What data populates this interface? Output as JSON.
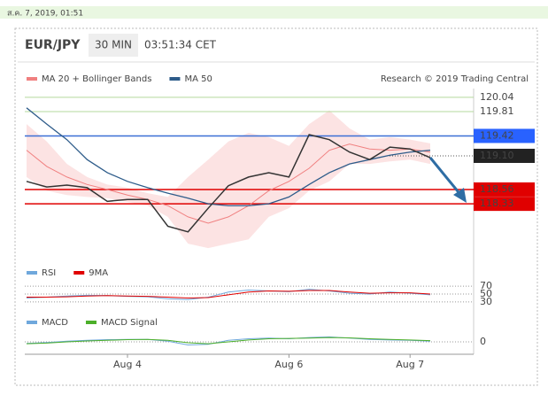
{
  "header": {
    "date": "ส.ค. 7, 2019, 01:51",
    "symbol": "EUR/JPY",
    "interval": "30 MIN",
    "time": "03:51:34 CET",
    "credit": "Research © 2019 Trading Central"
  },
  "chart_data": [
    {
      "type": "line",
      "categories": [
        null,
        null,
        null,
        null,
        null,
        "Aug 4",
        null,
        null,
        null,
        null,
        null,
        null,
        null,
        "Aug 6",
        null,
        null,
        null,
        null,
        null,
        "Aug 7",
        null
      ],
      "values": [
        118.69,
        118.6,
        118.63,
        118.59,
        118.37,
        118.4,
        118.4,
        117.97,
        117.88,
        118.26,
        118.62,
        118.76,
        118.83,
        118.76,
        119.44,
        119.36,
        119.16,
        119.04,
        119.24,
        119.21,
        119.07
      ],
      "color": "#333333",
      "series": [
        {
          "name": "MA 20 + Bollinger Bands",
          "color": "#f08080",
          "values": [
            119.19,
            118.93,
            118.76,
            118.64,
            118.56,
            118.47,
            118.4,
            118.3,
            118.12,
            118.02,
            118.12,
            118.3,
            118.54,
            118.69,
            118.9,
            119.19,
            119.29,
            119.21,
            119.19,
            119.21,
            119.16
          ],
          "upper": [
            119.61,
            119.33,
            118.97,
            118.76,
            118.64,
            118.59,
            118.5,
            118.44,
            118.76,
            119.04,
            119.33,
            119.47,
            119.4,
            119.26,
            119.61,
            119.83,
            119.54,
            119.36,
            119.4,
            119.36,
            119.3
          ],
          "lower": [
            118.76,
            118.54,
            118.47,
            118.44,
            118.42,
            118.36,
            118.3,
            118.12,
            117.69,
            117.62,
            117.69,
            117.76,
            118.12,
            118.26,
            118.54,
            118.69,
            118.97,
            118.97,
            119.01,
            119.04,
            118.97
          ]
        },
        {
          "name": "MA 50",
          "color": "#2e5c8a",
          "values": [
            119.87,
            119.61,
            119.36,
            119.04,
            118.83,
            118.69,
            118.59,
            118.5,
            118.42,
            118.33,
            118.3,
            118.3,
            118.33,
            118.44,
            118.64,
            118.83,
            118.97,
            119.04,
            119.11,
            119.16,
            119.19
          ]
        }
      ],
      "levels": [
        {
          "value": 120.04,
          "color": "#b5d99c"
        },
        {
          "value": 119.81,
          "color": "#b5d99c"
        },
        {
          "value": 119.42,
          "color": "#3b6fd6",
          "box": "#2962ff"
        },
        {
          "value": 119.1,
          "label": "119.10",
          "color": "#555555",
          "box": "#222222",
          "style": "dotted"
        },
        {
          "value": 118.56,
          "color": "#e00000",
          "box": "#e00000"
        },
        {
          "value": 118.33,
          "color": "#e00000",
          "box": "#e00000"
        }
      ],
      "ylim": [
        117.55,
        120.18
      ]
    },
    {
      "type": "line",
      "ylim": [
        14,
        86
      ],
      "yticks": [
        30,
        50,
        70
      ],
      "grid": "dotted",
      "series": [
        {
          "name": "RSI",
          "color": "#6fa8dc",
          "values": [
            40,
            42,
            45,
            47,
            46,
            44,
            43,
            38,
            36,
            42,
            55,
            60,
            58,
            56,
            62,
            58,
            52,
            50,
            55,
            52,
            48
          ]
        },
        {
          "name": "9MA",
          "color": "#e00000",
          "values": [
            42,
            42,
            43,
            45,
            46,
            45,
            44,
            42,
            40,
            41,
            48,
            55,
            58,
            57,
            59,
            59,
            55,
            52,
            53,
            53,
            50
          ]
        }
      ]
    },
    {
      "type": "line",
      "ylim": [
        -0.4,
        0.4
      ],
      "yticks": [
        0
      ],
      "grid": "dotted",
      "series": [
        {
          "name": "MACD",
          "color": "#6fa8dc",
          "values": [
            -0.05,
            -0.02,
            0.02,
            0.05,
            0.07,
            0.08,
            0.08,
            0.02,
            -0.1,
            -0.08,
            0.05,
            0.1,
            0.12,
            0.1,
            0.14,
            0.16,
            0.12,
            0.08,
            0.06,
            0.05,
            0.02
          ]
        },
        {
          "name": "MACD Signal",
          "color": "#4caf2a",
          "values": [
            -0.06,
            -0.04,
            0,
            0.03,
            0.05,
            0.07,
            0.08,
            0.05,
            -0.03,
            -0.06,
            0,
            0.06,
            0.1,
            0.11,
            0.12,
            0.14,
            0.13,
            0.1,
            0.08,
            0.06,
            0.04
          ]
        }
      ]
    }
  ]
}
